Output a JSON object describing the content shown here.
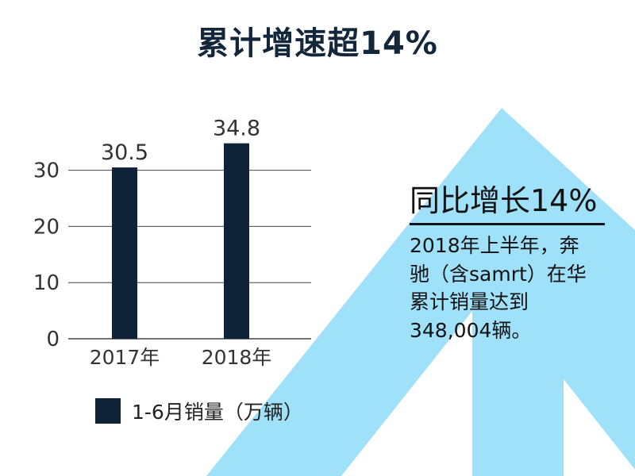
{
  "title": "累计增速超14%",
  "colors": {
    "bar": "#0e2238",
    "arrow": "#9fe1f9",
    "gridline": "#444444"
  },
  "chart_data": {
    "type": "bar",
    "categories": [
      "2017年",
      "2018年"
    ],
    "values": [
      30.5,
      34.8
    ],
    "data_labels": [
      "30.5",
      "34.8"
    ],
    "yticks": [
      0,
      10,
      20,
      30
    ],
    "ylim": [
      0,
      40
    ],
    "series": [
      {
        "name": "1-6月销量（万辆）",
        "values": [
          30.5,
          34.8
        ]
      }
    ],
    "grid": true,
    "legend": "bottom"
  },
  "legend": {
    "label": "1-6月销量（万辆）"
  },
  "callout": {
    "title": "同比增长14%",
    "lines": [
      "2018年上半年，奔",
      "驰（含samrt）在华",
      "累计销量达到",
      "348,004辆。"
    ]
  }
}
